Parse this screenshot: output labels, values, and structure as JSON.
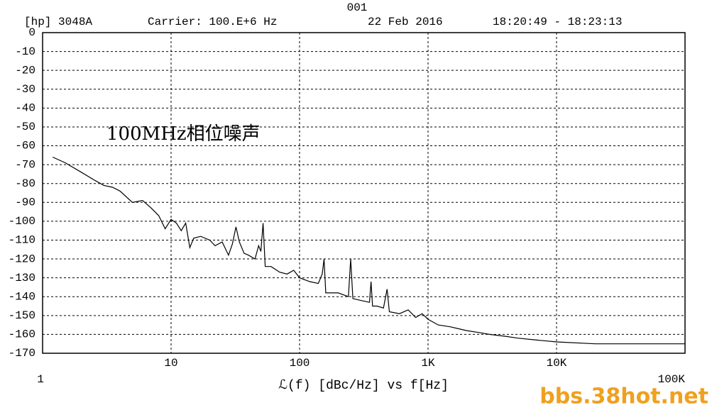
{
  "chart_data": {
    "type": "line",
    "plot_id": "001",
    "instrument": "[hp] 3048A",
    "carrier": "Carrier: 100.E+6 Hz",
    "date": "22 Feb 2016",
    "time_range": "18:20:49 - 18:23:13",
    "annotation": "100MHz相位噪声",
    "x_label": "ℒ(f) [dBc/Hz] vs f[Hz]",
    "watermark": "bbs.38hot.net",
    "xscale": "log",
    "grid": true,
    "color": "#000000",
    "x": [
      1.2,
      1.5,
      2,
      2.5,
      3,
      3.5,
      4,
      5,
      6,
      7,
      8,
      9,
      10,
      11,
      12,
      13,
      14,
      15,
      17,
      20,
      22,
      25,
      28,
      30,
      32,
      34,
      37,
      40,
      45,
      48,
      50,
      52,
      54,
      60,
      70,
      80,
      90,
      100,
      120,
      140,
      150,
      155,
      160,
      200,
      240,
      250,
      260,
      300,
      350,
      360,
      370,
      400,
      450,
      480,
      500,
      600,
      700,
      800,
      900,
      1000,
      1200,
      1500,
      2000,
      2500,
      3000,
      4000,
      5000,
      7000,
      10000,
      20000,
      50000,
      80000,
      100000
    ],
    "values": [
      -66,
      -69,
      -74,
      -78,
      -81,
      -82,
      -84,
      -90,
      -89,
      -93,
      -97,
      -104,
      -99,
      -101,
      -105,
      -101,
      -114,
      -109,
      -108,
      -110,
      -113,
      -111,
      -118,
      -112,
      -103,
      -111,
      -117,
      -118,
      -120,
      -113,
      -116,
      -101,
      -124,
      -124,
      -127,
      -128,
      -126,
      -130,
      -132,
      -133,
      -128,
      -120,
      -138,
      -138,
      -140,
      -120,
      -141,
      -142,
      -143,
      -132,
      -145,
      -145,
      -146,
      -136,
      -148,
      -149,
      -147,
      -151,
      -149,
      -152,
      -155,
      -156,
      -158,
      -159,
      -160,
      -161,
      -162,
      -163,
      -164,
      -165,
      -165,
      -165,
      -165
    ],
    "xlim": [
      1,
      100000
    ],
    "xticks": [
      1,
      10,
      100,
      {
        "value": 1000,
        "label": "1K"
      },
      {
        "value": 10000,
        "label": "10K"
      },
      {
        "value": 100000,
        "label": "100K"
      }
    ],
    "ylim": [
      -170,
      0
    ],
    "yticks": [
      0,
      -10,
      -20,
      -30,
      -40,
      -50,
      -60,
      -70,
      -80,
      -90,
      -100,
      -110,
      -120,
      -130,
      -140,
      -150,
      -160,
      -170
    ]
  }
}
